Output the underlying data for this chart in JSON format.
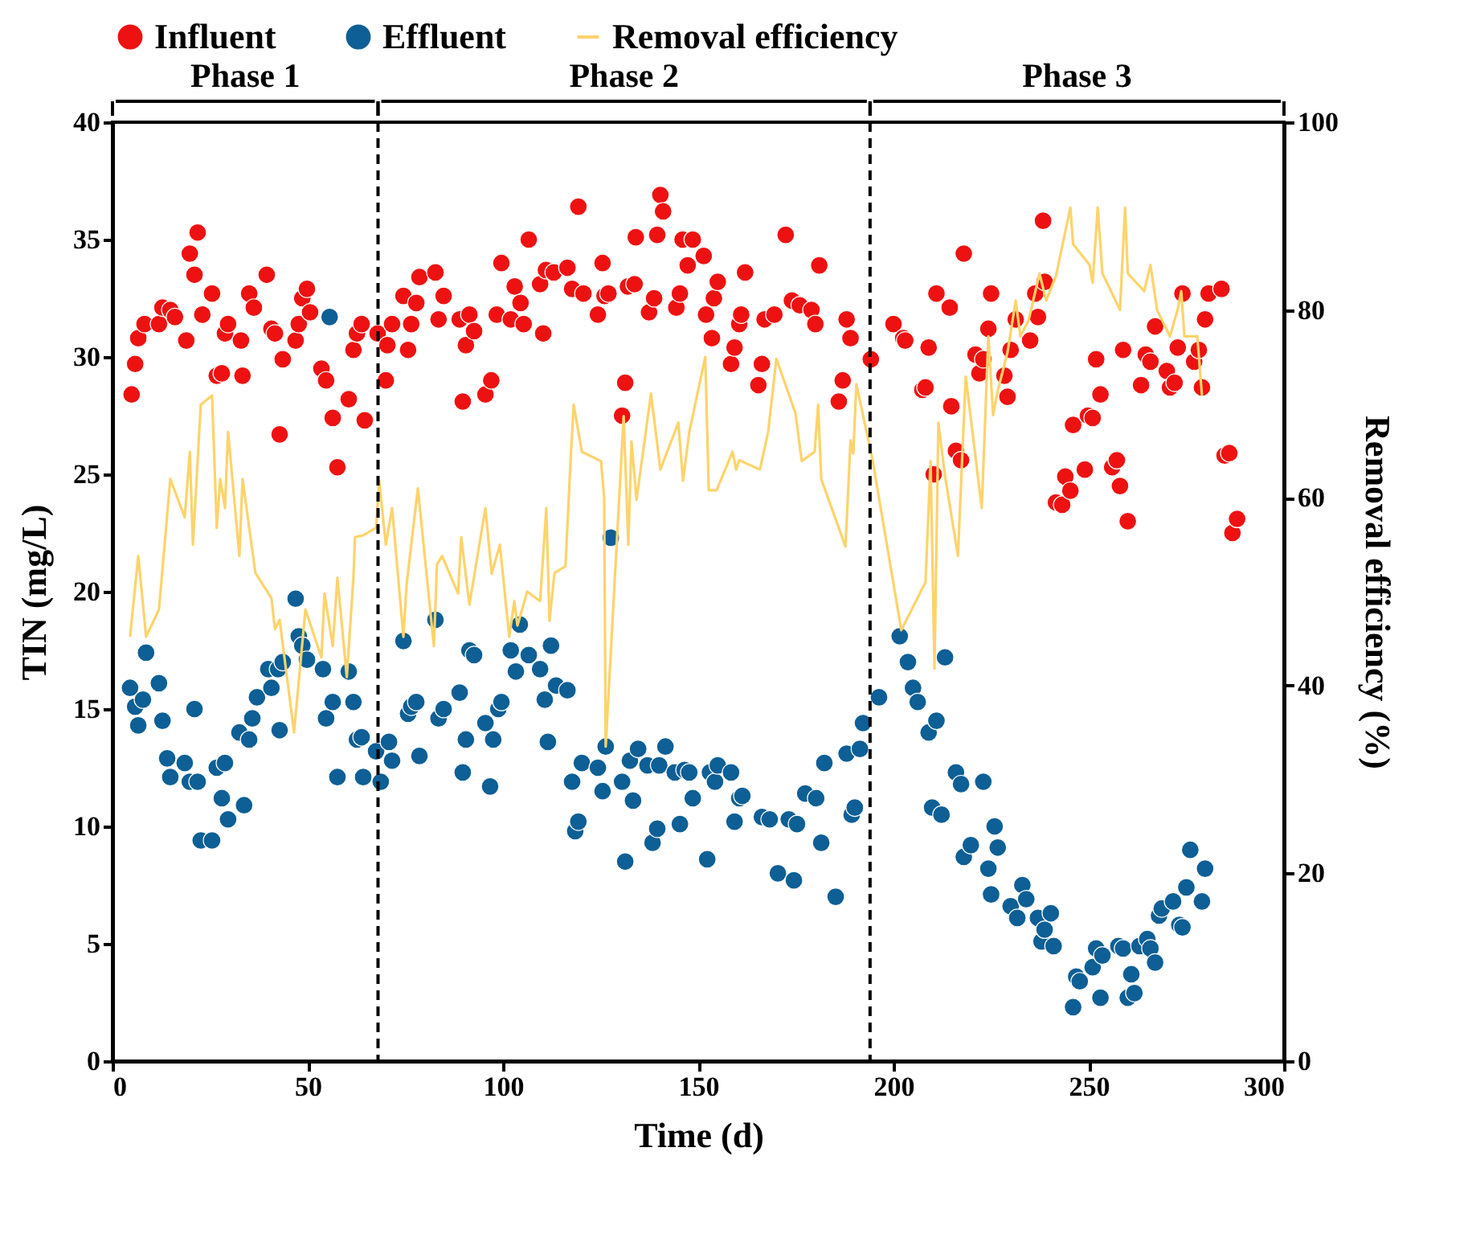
{
  "chart_data": {
    "type": "scatter",
    "xlabel": "Time (d)",
    "ylabel": "TIN (mg/L)",
    "y2label": "Removal efficiency (%)",
    "xlim": [
      0,
      300
    ],
    "xticks": [
      0,
      50,
      100,
      150,
      200,
      250,
      300
    ],
    "ylim": [
      0,
      40
    ],
    "yticks": [
      0,
      5,
      10,
      15,
      20,
      25,
      30,
      35,
      40
    ],
    "y2lim": [
      0,
      100
    ],
    "y2ticks": [
      0,
      20,
      40,
      60,
      80,
      100
    ],
    "legend": "top",
    "grid": false,
    "marker": "circle",
    "annotations": [
      "Phase 1",
      "Phase 2",
      "Phase 3"
    ],
    "ref_lines": [
      {
        "axis": "x",
        "value": 68,
        "label": null,
        "color": "#000000",
        "line_style": "dashed"
      },
      {
        "axis": "x",
        "value": 194,
        "label": null,
        "color": "#000000",
        "line_style": "dashed"
      }
    ],
    "series": [
      {
        "name": "Influent",
        "type": "scatter",
        "color": "#ee1111",
        "x": [
          4.9,
          5.8,
          6.6,
          8.2,
          11.9,
          12.8,
          14.8,
          16.0,
          18.9,
          19.8,
          21,
          21.8,
          23,
          25.5,
          26.7,
          28,
          28.8,
          29.6,
          32.9,
          33.3,
          35,
          36.2,
          39.5,
          40.7,
          41.6,
          42.8,
          43.6,
          46.9,
          47.7,
          48.6,
          49.8,
          50.6,
          53.5,
          54.7,
          56.4,
          57.6,
          60.5,
          61.7,
          62.6,
          63.8,
          64.6,
          67.9,
          70,
          70.4,
          71.6,
          74.5,
          75.7,
          76.5,
          77.8,
          78.6,
          82.7,
          83.5,
          84.8,
          88.9,
          89.7,
          90.5,
          91.4,
          92.6,
          95.5,
          97,
          98.4,
          99.6,
          102,
          103,
          104.5,
          105.3,
          106.6,
          109.5,
          110.3,
          111,
          113,
          116.5,
          117.7,
          119.3,
          120.6,
          124.3,
          125.5,
          126,
          127,
          130.5,
          131.3,
          132,
          133.7,
          134,
          137.4,
          138.7,
          139.5,
          140.3,
          141,
          144.4,
          145.3,
          146,
          147.3,
          148.6,
          151.4,
          152,
          153.5,
          154,
          155,
          158.4,
          159.3,
          160.5,
          161,
          162,
          165.4,
          166.3,
          167,
          169.5,
          172.4,
          174,
          176,
          179,
          180,
          181,
          186,
          187,
          188,
          189,
          194.2,
          200,
          202.5,
          203,
          207.4,
          208.2,
          209,
          210.3,
          211,
          214.4,
          214.8,
          216,
          217.3,
          218,
          221,
          222,
          223,
          224.3,
          225,
          228.4,
          229.2,
          230,
          231.3,
          235,
          236.3,
          237,
          238.3,
          238.7,
          241.6,
          243.2,
          244,
          245.3,
          246,
          249,
          249.8,
          251,
          251.9,
          253,
          256,
          257.2,
          258,
          258.8,
          260,
          263.4,
          264.6,
          265.8,
          267,
          270,
          270.8,
          272,
          272.8,
          274,
          277,
          278.2,
          279,
          279.8,
          280.7,
          284,
          284.8,
          286,
          286.8,
          288
        ],
        "values": [
          28.4,
          29.7,
          30.8,
          31.4,
          31.4,
          32.1,
          32.0,
          31.7,
          30.7,
          34.4,
          33.5,
          35.3,
          31.8,
          32.7,
          29.2,
          29.3,
          31.0,
          31.4,
          30.7,
          29.2,
          32.7,
          32.1,
          33.5,
          31.2,
          31.0,
          26.7,
          29.9,
          30.7,
          31.4,
          32.5,
          32.9,
          31.9,
          29.5,
          29.0,
          27.4,
          25.3,
          28.2,
          30.3,
          31.0,
          31.4,
          27.3,
          31.0,
          29.0,
          30.5,
          31.4,
          32.6,
          30.3,
          31.4,
          32.3,
          33.4,
          33.6,
          31.6,
          32.6,
          31.6,
          28.1,
          30.5,
          31.8,
          31.1,
          28.4,
          29.0,
          31.8,
          34.0,
          31.6,
          33.0,
          32.3,
          31.4,
          35.0,
          33.1,
          31.0,
          33.7,
          33.6,
          33.8,
          32.9,
          36.4,
          32.7,
          31.8,
          34.0,
          32.6,
          32.7,
          27.5,
          28.9,
          33.0,
          33.1,
          35.1,
          31.9,
          32.5,
          35.2,
          36.9,
          36.2,
          32.1,
          32.7,
          35.0,
          33.9,
          35.0,
          34.3,
          31.8,
          30.8,
          32.5,
          33.2,
          29.7,
          30.4,
          31.4,
          31.8,
          33.6,
          28.8,
          29.7,
          31.6,
          31.8,
          35.2,
          32.4,
          32.2,
          32.0,
          31.4,
          33.9,
          28.1,
          29.0,
          31.6,
          30.8,
          29.9,
          31.4,
          30.8,
          30.7,
          28.6,
          28.7,
          30.4,
          25.0,
          32.7,
          32.1,
          27.9,
          26.0,
          25.6,
          34.4,
          30.1,
          29.3,
          29.9,
          31.2,
          32.7,
          29.2,
          28.3,
          30.3,
          31.6,
          30.7,
          32.7,
          31.7,
          35.8,
          33.2,
          23.8,
          23.7,
          24.9,
          24.3,
          27.1,
          25.2,
          27.5,
          27.4,
          29.9,
          28.4,
          25.3,
          25.6,
          24.5,
          30.3,
          23.0,
          28.8,
          30.1,
          29.8,
          31.3,
          29.4,
          28.7,
          28.9,
          30.4,
          32.7,
          29.8,
          30.3,
          28.7,
          31.6,
          32.7,
          32.9,
          25.8,
          25.9,
          22.5,
          23.1
        ]
      },
      {
        "name": "Effluent",
        "type": "scatter",
        "color": "#0d5f95",
        "x": [
          4.5,
          5.8,
          6.6,
          7.8,
          8.6,
          11.9,
          12.8,
          14,
          14.8,
          18.5,
          19.8,
          21,
          21.8,
          22.6,
          25.5,
          26.7,
          28,
          28.8,
          29.6,
          32.5,
          33.7,
          35,
          35.8,
          37,
          39.9,
          40.7,
          42.4,
          42.8,
          43.6,
          46.9,
          47.7,
          48.6,
          49.8,
          53.9,
          54.7,
          55.6,
          56.4,
          57.6,
          60.5,
          61.7,
          62.6,
          63.8,
          64.2,
          67.5,
          68.7,
          70.8,
          71.6,
          74.5,
          75.7,
          76.5,
          77.8,
          78.6,
          82.7,
          83.5,
          84.8,
          88.9,
          89.7,
          90.5,
          91.4,
          92.6,
          95.5,
          96.7,
          97.5,
          98.8,
          99.6,
          102,
          103.3,
          104.3,
          106.6,
          109.5,
          110.7,
          111.5,
          112.3,
          113.6,
          116.5,
          117.7,
          118.5,
          119.3,
          120.2,
          124.3,
          125.5,
          126.3,
          127.6,
          130.5,
          131.3,
          132.5,
          133.3,
          134.6,
          137,
          138.3,
          139.5,
          140,
          141.6,
          144,
          145.3,
          146.5,
          147.7,
          148.6,
          152.3,
          153,
          154.3,
          155,
          158.4,
          159.3,
          160.5,
          161.3,
          166.3,
          168.3,
          170.4,
          173.2,
          174.5,
          175.3,
          177.4,
          180.2,
          181.5,
          182.3,
          185.2,
          188,
          189.3,
          190.1,
          191.4,
          192.2,
          196.3,
          201.6,
          203.7,
          205,
          206.2,
          209,
          209.9,
          211,
          212.3,
          213.2,
          216,
          217.3,
          218,
          219.8,
          223,
          224.3,
          225,
          225.9,
          226.7,
          230,
          231.7,
          233,
          234,
          237,
          237.9,
          238.7,
          240.3,
          241,
          246,
          246.8,
          247.7,
          251,
          251.9,
          253,
          253.5,
          257.6,
          258.8,
          260,
          260.9,
          261.7,
          263,
          265,
          265.8,
          267,
          268,
          268.7,
          271.6,
          273.2,
          274,
          275,
          276,
          279,
          279.8
        ],
        "values": [
          15.9,
          15.1,
          14.3,
          15.4,
          17.4,
          16.1,
          14.5,
          12.9,
          12.1,
          12.7,
          11.9,
          15.0,
          11.9,
          9.4,
          9.4,
          12.5,
          11.2,
          12.7,
          10.3,
          14.0,
          10.9,
          13.7,
          14.6,
          15.5,
          16.7,
          15.9,
          16.7,
          14.1,
          17.0,
          19.7,
          18.1,
          17.7,
          17.1,
          16.7,
          14.6,
          31.7,
          15.3,
          12.1,
          16.6,
          15.3,
          13.7,
          13.8,
          12.1,
          13.2,
          11.9,
          13.6,
          12.8,
          17.9,
          14.8,
          15.1,
          15.3,
          13.0,
          18.8,
          14.6,
          15.0,
          15.7,
          12.3,
          13.7,
          17.5,
          17.3,
          14.4,
          11.7,
          13.7,
          15.0,
          15.3,
          17.5,
          16.6,
          18.6,
          17.3,
          16.7,
          15.4,
          13.6,
          17.7,
          16.0,
          15.8,
          11.9,
          9.8,
          10.2,
          12.7,
          12.5,
          11.5,
          13.4,
          22.3,
          11.9,
          8.5,
          12.8,
          11.1,
          13.3,
          12.6,
          9.3,
          9.9,
          12.6,
          13.4,
          12.3,
          10.1,
          12.4,
          12.3,
          11.2,
          8.6,
          12.3,
          11.9,
          12.6,
          12.3,
          10.2,
          11.2,
          11.3,
          10.4,
          10.3,
          8.0,
          10.3,
          7.7,
          10.1,
          11.4,
          11.2,
          9.3,
          12.7,
          7.0,
          13.1,
          10.5,
          10.8,
          13.3,
          14.4,
          15.5,
          18.1,
          17.0,
          15.9,
          15.3,
          14.0,
          10.8,
          14.5,
          10.5,
          17.2,
          12.3,
          11.8,
          8.7,
          9.2,
          11.9,
          8.2,
          7.1,
          10.0,
          9.1,
          6.6,
          6.1,
          7.5,
          6.9,
          6.1,
          5.1,
          5.6,
          6.3,
          4.9,
          2.3,
          3.6,
          3.4,
          4.0,
          4.8,
          2.7,
          4.5,
          4.9,
          4.8,
          2.7,
          3.7,
          2.9,
          4.9,
          5.2,
          4.8,
          4.2,
          6.2,
          6.5,
          6.8,
          5.8,
          5.7,
          7.4,
          9.0,
          6.8,
          8.2
        ]
      },
      {
        "name": "Removal efficiency",
        "type": "line",
        "axis": "y2",
        "color": "#fdd36b",
        "marker": "none",
        "line_style": "solid",
        "x": [
          4.5,
          6.6,
          8.6,
          11.9,
          14.8,
          18.5,
          19.8,
          20.6,
          22.6,
          25.5,
          26.7,
          27.6,
          28.8,
          29.6,
          32.5,
          33.3,
          36.6,
          40.7,
          41.6,
          42.8,
          46.5,
          49.4,
          53.5,
          54.3,
          56.4,
          57.6,
          60,
          61.7,
          62.1,
          64.2,
          67.5,
          68.3,
          70,
          71.6,
          74.5,
          75.3,
          78.2,
          82.3,
          83.1,
          84.4,
          88.5,
          89.3,
          91.4,
          95.5,
          97.1,
          99.2,
          101.6,
          102.9,
          103.7,
          106.2,
          109.5,
          111.1,
          111.9,
          113.2,
          116,
          117.3,
          118.1,
          120.2,
          125.1,
          125.9,
          126.3,
          130.9,
          132.1,
          132.9,
          134.2,
          137.9,
          140.3,
          144.9,
          146.1,
          147.7,
          151.8,
          152.7,
          154.7,
          158.8,
          159.7,
          160.5,
          165.8,
          167.9,
          170,
          174.9,
          176.5,
          179.8,
          180.7,
          181.5,
          187.7,
          189,
          189.7,
          190.5,
          194.7,
          202,
          208.2,
          209.5,
          210.5,
          211.5,
          213.2,
          216.5,
          218.5,
          222.6,
          224.3,
          225.5,
          226.7,
          229.2,
          231.3,
          232.5,
          234.6,
          237.4,
          239.1,
          241.6,
          245.3,
          246,
          250.2,
          251,
          252.3,
          253.5,
          258,
          259.3,
          260,
          264.2,
          265.8,
          267.5,
          270.8,
          272.8,
          273.7,
          274.5,
          277.8,
          279
        ],
        "values": [
          45.2,
          53.8,
          45.2,
          48.1,
          62,
          57.9,
          64.9,
          55,
          69.9,
          70.9,
          56.8,
          62,
          58.9,
          67,
          53.8,
          62,
          52,
          49.3,
          46,
          47,
          35,
          48.1,
          43,
          49.8,
          44.2,
          51.5,
          40.9,
          51.5,
          55.8,
          56,
          56.8,
          61.8,
          55,
          58.9,
          45.2,
          50.7,
          61,
          44.2,
          52.9,
          53.8,
          49.8,
          55.8,
          48.6,
          58.9,
          51.9,
          55,
          45.2,
          49,
          46.4,
          50,
          49,
          58.9,
          46.9,
          52,
          52.7,
          63.9,
          69.9,
          64.9,
          63.9,
          60.1,
          33.5,
          68.7,
          55,
          66,
          59.8,
          71.1,
          63,
          68,
          61.8,
          67,
          75,
          60.8,
          60.8,
          64.9,
          63,
          64,
          63,
          67,
          74.8,
          69,
          63.9,
          64.9,
          69.9,
          62,
          54.8,
          66.1,
          64.7,
          72.1,
          63.9,
          45.9,
          51,
          63.9,
          41.8,
          68,
          62.3,
          53.8,
          72.9,
          58.9,
          77.2,
          68.8,
          71.4,
          75.5,
          81,
          77.2,
          78.9,
          83.9,
          81,
          83.6,
          90.9,
          87,
          84.8,
          82.9,
          90.9,
          83.9,
          80,
          90.9,
          83.9,
          82,
          84.8,
          80,
          77.2,
          80.1,
          82,
          77.2,
          77.2,
          70.9
        ]
      }
    ]
  }
}
